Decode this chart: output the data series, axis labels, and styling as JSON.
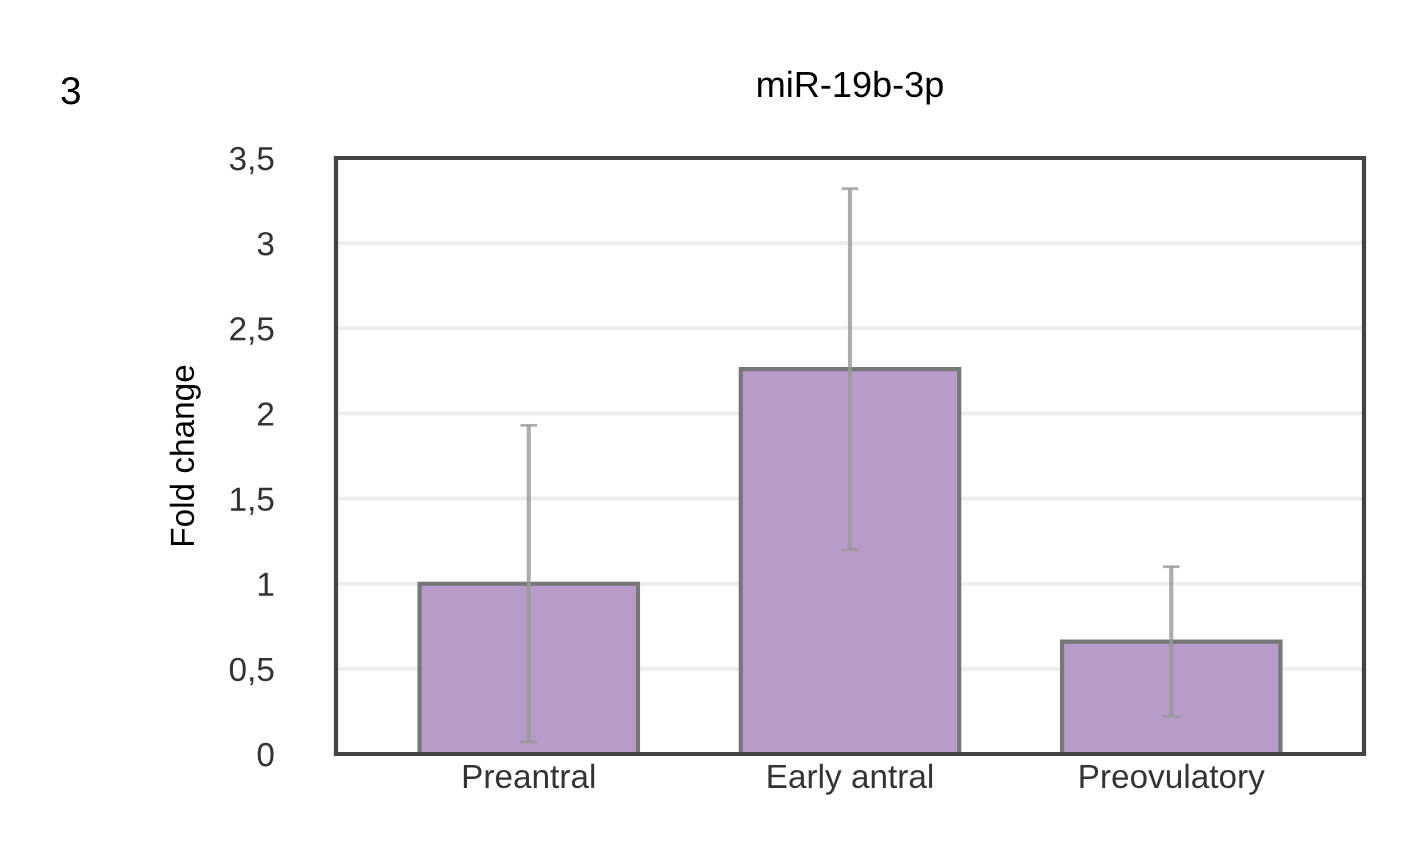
{
  "chart_data": {
    "type": "bar",
    "title": "miR-19b-3p",
    "ylabel": "Fold change",
    "annotations": [
      "3"
    ],
    "categories": [
      "Preantral",
      "Early antral",
      "Preovulatory"
    ],
    "values": [
      1.0,
      2.26,
      0.66
    ],
    "errors": [
      0.93,
      1.06,
      0.44
    ],
    "color": "#b79bc9",
    "ylim": [
      0,
      3.5
    ],
    "yticks": [
      0,
      {
        "value": 0.5,
        "label": "0,5"
      },
      1,
      {
        "value": 1.5,
        "label": "1,5"
      },
      2,
      {
        "value": 2.5,
        "label": "2,5"
      },
      3,
      {
        "value": 3.5,
        "label": "3,5"
      }
    ],
    "grid": "y"
  }
}
